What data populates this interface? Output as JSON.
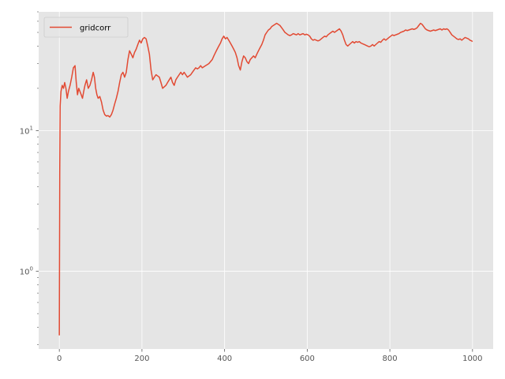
{
  "chart_data": {
    "type": "line",
    "title": "",
    "xlabel": "",
    "ylabel": "",
    "yscale": "log",
    "xlim": [
      -50,
      1050
    ],
    "ylim": [
      0.28,
      70
    ],
    "grid": true,
    "background": "#e5e5e5",
    "legend_position": "upper-left",
    "x_ticks": [
      0,
      200,
      400,
      600,
      800,
      1000
    ],
    "x_tick_labels": [
      "0",
      "200",
      "400",
      "600",
      "800",
      "1000"
    ],
    "y_major_ticks": [
      1,
      10
    ],
    "y_tick_labels": {
      "base": [
        "10",
        "10"
      ],
      "exp": [
        "0",
        "1"
      ]
    },
    "series": [
      {
        "name": "gridcorr",
        "color": "#e24a33",
        "points": [
          [
            0,
            0.35
          ],
          [
            1,
            5
          ],
          [
            2,
            15
          ],
          [
            4,
            19
          ],
          [
            7,
            21
          ],
          [
            10,
            20
          ],
          [
            13,
            22
          ],
          [
            16,
            20
          ],
          [
            19,
            17
          ],
          [
            22,
            19
          ],
          [
            26,
            21
          ],
          [
            30,
            24
          ],
          [
            34,
            28
          ],
          [
            38,
            29
          ],
          [
            41,
            22
          ],
          [
            44,
            18
          ],
          [
            47,
            20
          ],
          [
            50,
            19
          ],
          [
            53,
            18
          ],
          [
            56,
            17
          ],
          [
            59,
            19
          ],
          [
            62,
            21
          ],
          [
            66,
            23
          ],
          [
            70,
            20
          ],
          [
            74,
            21
          ],
          [
            78,
            23
          ],
          [
            82,
            26
          ],
          [
            85,
            24
          ],
          [
            88,
            20
          ],
          [
            91,
            18
          ],
          [
            94,
            17
          ],
          [
            98,
            17.5
          ],
          [
            102,
            16
          ],
          [
            106,
            14
          ],
          [
            110,
            13
          ],
          [
            114,
            12.7
          ],
          [
            118,
            12.8
          ],
          [
            122,
            12.5
          ],
          [
            126,
            13
          ],
          [
            130,
            14
          ],
          [
            134,
            15.5
          ],
          [
            138,
            17
          ],
          [
            142,
            19
          ],
          [
            146,
            22
          ],
          [
            150,
            25
          ],
          [
            154,
            26
          ],
          [
            158,
            24
          ],
          [
            162,
            26
          ],
          [
            166,
            32
          ],
          [
            170,
            37
          ],
          [
            174,
            35
          ],
          [
            178,
            33
          ],
          [
            182,
            36
          ],
          [
            186,
            38
          ],
          [
            190,
            41
          ],
          [
            194,
            44
          ],
          [
            198,
            42
          ],
          [
            202,
            45
          ],
          [
            206,
            46
          ],
          [
            210,
            45
          ],
          [
            214,
            40
          ],
          [
            218,
            35
          ],
          [
            222,
            27
          ],
          [
            226,
            23
          ],
          [
            230,
            24
          ],
          [
            234,
            25
          ],
          [
            238,
            24.5
          ],
          [
            242,
            24
          ],
          [
            246,
            22
          ],
          [
            250,
            20
          ],
          [
            254,
            20.5
          ],
          [
            258,
            21
          ],
          [
            262,
            22
          ],
          [
            266,
            23
          ],
          [
            270,
            24
          ],
          [
            274,
            22
          ],
          [
            278,
            21
          ],
          [
            282,
            23
          ],
          [
            286,
            24
          ],
          [
            290,
            25
          ],
          [
            294,
            26
          ],
          [
            298,
            25
          ],
          [
            302,
            26
          ],
          [
            306,
            25
          ],
          [
            310,
            24
          ],
          [
            314,
            24.5
          ],
          [
            318,
            25
          ],
          [
            322,
            26
          ],
          [
            326,
            27
          ],
          [
            330,
            28
          ],
          [
            334,
            27.5
          ],
          [
            338,
            28
          ],
          [
            342,
            29
          ],
          [
            346,
            28
          ],
          [
            350,
            28.5
          ],
          [
            354,
            29
          ],
          [
            358,
            29.5
          ],
          [
            362,
            30
          ],
          [
            366,
            31
          ],
          [
            370,
            32
          ],
          [
            374,
            34
          ],
          [
            378,
            36
          ],
          [
            382,
            38
          ],
          [
            386,
            40
          ],
          [
            390,
            42
          ],
          [
            394,
            45
          ],
          [
            398,
            47
          ],
          [
            402,
            45
          ],
          [
            406,
            46
          ],
          [
            410,
            44
          ],
          [
            414,
            42
          ],
          [
            418,
            40
          ],
          [
            422,
            38
          ],
          [
            426,
            36
          ],
          [
            430,
            33
          ],
          [
            434,
            29
          ],
          [
            438,
            27
          ],
          [
            442,
            31
          ],
          [
            446,
            34
          ],
          [
            450,
            33
          ],
          [
            454,
            31
          ],
          [
            458,
            30
          ],
          [
            462,
            32
          ],
          [
            466,
            33
          ],
          [
            470,
            34
          ],
          [
            474,
            33
          ],
          [
            478,
            35
          ],
          [
            482,
            37
          ],
          [
            486,
            39
          ],
          [
            490,
            41
          ],
          [
            494,
            44
          ],
          [
            498,
            48
          ],
          [
            502,
            50
          ],
          [
            506,
            52
          ],
          [
            510,
            53
          ],
          [
            514,
            55
          ],
          [
            518,
            56
          ],
          [
            522,
            57
          ],
          [
            526,
            58
          ],
          [
            530,
            57
          ],
          [
            534,
            56
          ],
          [
            538,
            54
          ],
          [
            542,
            52
          ],
          [
            546,
            50
          ],
          [
            550,
            49
          ],
          [
            554,
            48
          ],
          [
            558,
            47.5
          ],
          [
            562,
            48
          ],
          [
            566,
            49
          ],
          [
            570,
            48.5
          ],
          [
            574,
            48
          ],
          [
            578,
            49
          ],
          [
            582,
            48
          ],
          [
            586,
            48.5
          ],
          [
            590,
            49
          ],
          [
            594,
            48
          ],
          [
            598,
            48.5
          ],
          [
            602,
            48
          ],
          [
            606,
            47
          ],
          [
            610,
            45
          ],
          [
            614,
            44
          ],
          [
            618,
            44.5
          ],
          [
            622,
            44
          ],
          [
            626,
            43.5
          ],
          [
            630,
            44
          ],
          [
            634,
            45
          ],
          [
            638,
            46
          ],
          [
            642,
            47
          ],
          [
            646,
            46.5
          ],
          [
            650,
            48
          ],
          [
            654,
            49
          ],
          [
            658,
            50
          ],
          [
            662,
            51
          ],
          [
            666,
            50
          ],
          [
            670,
            51
          ],
          [
            674,
            52
          ],
          [
            678,
            53
          ],
          [
            682,
            51
          ],
          [
            686,
            48
          ],
          [
            690,
            44
          ],
          [
            694,
            41
          ],
          [
            698,
            40
          ],
          [
            702,
            41
          ],
          [
            706,
            42
          ],
          [
            710,
            43
          ],
          [
            714,
            42
          ],
          [
            718,
            43
          ],
          [
            722,
            42.5
          ],
          [
            726,
            43
          ],
          [
            730,
            42
          ],
          [
            734,
            41.5
          ],
          [
            738,
            41
          ],
          [
            742,
            40.5
          ],
          [
            746,
            40
          ],
          [
            750,
            39.5
          ],
          [
            754,
            40
          ],
          [
            758,
            41
          ],
          [
            762,
            40
          ],
          [
            766,
            41
          ],
          [
            770,
            42
          ],
          [
            774,
            43
          ],
          [
            778,
            42.5
          ],
          [
            782,
            44
          ],
          [
            786,
            45
          ],
          [
            790,
            44
          ],
          [
            794,
            45
          ],
          [
            798,
            46
          ],
          [
            802,
            47
          ],
          [
            806,
            48
          ],
          [
            810,
            47.5
          ],
          [
            814,
            48
          ],
          [
            818,
            48.5
          ],
          [
            822,
            49
          ],
          [
            826,
            50
          ],
          [
            830,
            50.5
          ],
          [
            834,
            51
          ],
          [
            838,
            52
          ],
          [
            842,
            51.5
          ],
          [
            846,
            52
          ],
          [
            850,
            52.5
          ],
          [
            854,
            53
          ],
          [
            858,
            52.5
          ],
          [
            862,
            53
          ],
          [
            866,
            54
          ],
          [
            870,
            56
          ],
          [
            874,
            58
          ],
          [
            878,
            57
          ],
          [
            882,
            55
          ],
          [
            886,
            53
          ],
          [
            890,
            52
          ],
          [
            894,
            51.5
          ],
          [
            898,
            51
          ],
          [
            902,
            51.5
          ],
          [
            906,
            52
          ],
          [
            910,
            51.5
          ],
          [
            914,
            52
          ],
          [
            918,
            52.5
          ],
          [
            922,
            53
          ],
          [
            926,
            52
          ],
          [
            930,
            53
          ],
          [
            934,
            52.5
          ],
          [
            938,
            53
          ],
          [
            942,
            52
          ],
          [
            946,
            50
          ],
          [
            950,
            48
          ],
          [
            954,
            47
          ],
          [
            958,
            46
          ],
          [
            962,
            45
          ],
          [
            966,
            44.5
          ],
          [
            970,
            45
          ],
          [
            974,
            44
          ],
          [
            978,
            45
          ],
          [
            982,
            46
          ],
          [
            986,
            45.5
          ],
          [
            990,
            45
          ],
          [
            994,
            44
          ],
          [
            998,
            43.5
          ],
          [
            1000,
            43
          ]
        ]
      }
    ]
  }
}
